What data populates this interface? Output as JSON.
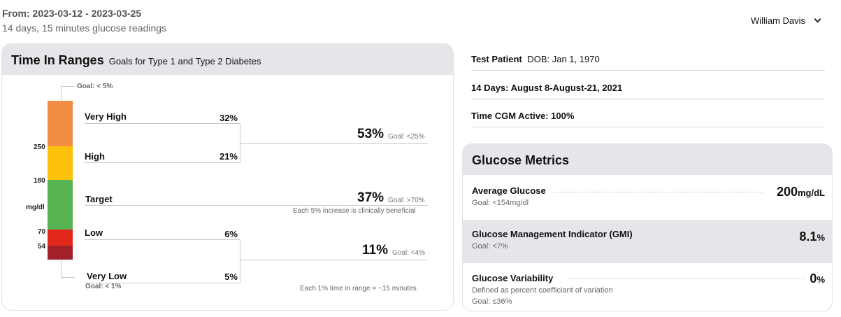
{
  "header": {
    "range": "From: 2023-03-12 - 2023-03-25",
    "readings": "14 days, 15 minutes glucose readings",
    "user": "William Davis"
  },
  "tir": {
    "title": "Time In Ranges",
    "subtitle": "Goals for Type 1 and Type 2 Diabetes",
    "goal_top": "Goal: < 5%",
    "goal_bottom": "Goal: < 1%",
    "thresholds": {
      "t250": "250",
      "t180": "180",
      "unit": "mg/dl",
      "t70": "70",
      "t54": "54"
    },
    "segments": {
      "very_high": {
        "label": "Very High",
        "pct": "32%",
        "color": "#f28b44"
      },
      "high": {
        "label": "High",
        "pct": "21%",
        "color": "#fbc10b"
      },
      "target": {
        "label": "Target",
        "color": "#57b452"
      },
      "low": {
        "label": "Low",
        "pct": "6%",
        "color": "#e3281c"
      },
      "very_low": {
        "label": "Very Low",
        "pct": "5%",
        "color": "#a3202a"
      }
    },
    "above": {
      "value": "53%",
      "goal": "Goal: <25%"
    },
    "target_summary": {
      "value": "37%",
      "goal": "Goal: >70%",
      "note": "Each 5% increase is clinically beneficial"
    },
    "below": {
      "value": "11%",
      "goal": "Goal: <4%"
    },
    "footer_note": "Each 1% time in range = ~15 minutes"
  },
  "patient": {
    "name": "Test Patient",
    "dob": "DOB: Jan 1, 1970",
    "period": "14 Days: August 8-August-21, 2021",
    "cgm": "Time CGM Active: 100%"
  },
  "metrics": {
    "title": "Glucose Metrics",
    "avg": {
      "name": "Average Glucose",
      "goal": "Goal: <154mg/dl",
      "value": "200",
      "unit": "mg/dL"
    },
    "gmi": {
      "name": "Glucose Management Indicator (GMI)",
      "goal": "Goal: <7%",
      "value": "8.1",
      "unit": "%"
    },
    "var": {
      "name": "Glucose Variability",
      "desc": "Defined as percent coefficiant of variation",
      "goal": "Goal: ≤36%",
      "value": "0",
      "unit": "%"
    }
  }
}
